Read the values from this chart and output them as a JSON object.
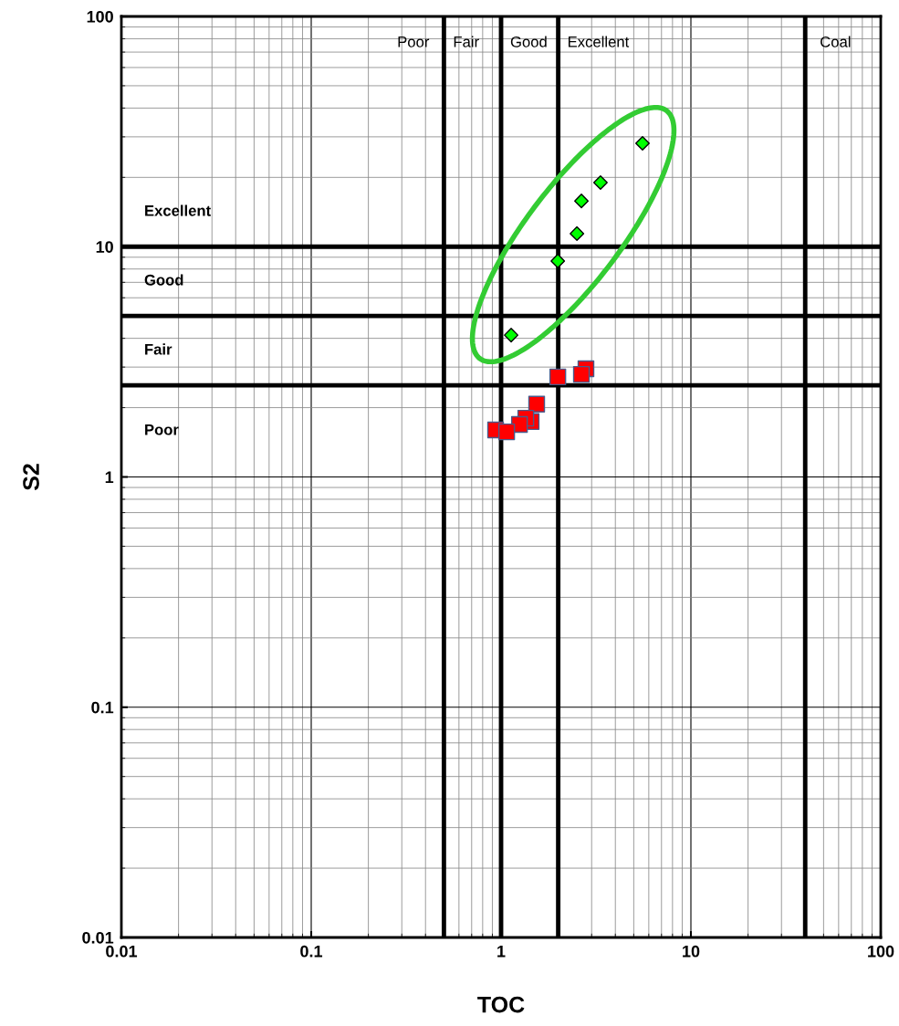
{
  "chart_data": {
    "type": "scatter",
    "xlabel": "TOC",
    "ylabel": "S2",
    "log": "xy",
    "grid": true,
    "xlim": [
      0.01,
      100
    ],
    "ylim": [
      0.01,
      100
    ],
    "xticks": [
      0.01,
      0.1,
      1,
      10,
      100
    ],
    "yticks": [
      0.01,
      0.1,
      1,
      10,
      100
    ],
    "series": [
      {
        "color": "#00ff00",
        "marker": "diamond",
        "x": [
          5.56,
          3.34,
          2.65,
          2.51,
          1.99,
          1.13
        ],
        "values": [
          28.1,
          19.0,
          15.8,
          11.4,
          8.67,
          4.13
        ]
      },
      {
        "color": "#ff0000",
        "marker": "square",
        "x": [
          2.8,
          2.65,
          1.99,
          1.54,
          1.44,
          1.35,
          1.25,
          0.936,
          1.07
        ],
        "values": [
          2.95,
          2.79,
          2.72,
          2.07,
          1.74,
          1.8,
          1.69,
          1.6,
          1.57
        ]
      }
    ],
    "ref_lines": [
      {
        "axis": "x",
        "value": 0.5,
        "color": "#000000"
      },
      {
        "axis": "x",
        "value": 1,
        "color": "#000000"
      },
      {
        "axis": "x",
        "value": 2,
        "color": "#000000"
      },
      {
        "axis": "x",
        "value": 40,
        "color": "#000000"
      },
      {
        "axis": "y",
        "value": 10,
        "color": "#000000"
      },
      {
        "axis": "y",
        "value": 5,
        "color": "#000000"
      },
      {
        "axis": "y",
        "value": 2.5,
        "color": "#000000"
      }
    ],
    "annotations": [
      "Poor",
      "Fair",
      "Good",
      "Excellent",
      "Coal",
      "Excellent",
      "Good",
      "Fair",
      "Poor"
    ]
  }
}
